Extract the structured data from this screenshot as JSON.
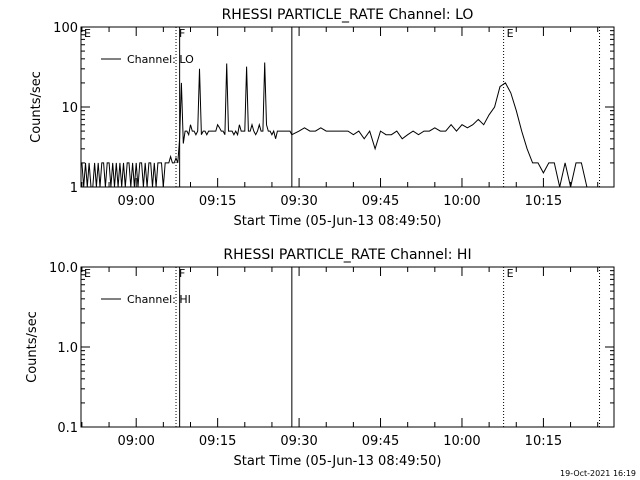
{
  "footer_timestamp": "19-Oct-2021 16:19",
  "chart_data": [
    {
      "type": "line",
      "title": "RHESSI PARTICLE_RATE Channel: LO",
      "xlabel": "Start Time (05-Jun-13 08:49:50)",
      "ylabel": "Counts/sec",
      "xlim": [
        "08:49:50",
        "10:28:00"
      ],
      "ylim": [
        1,
        100
      ],
      "yscale": "log",
      "x_ticks": [
        "09:00",
        "09:15",
        "09:30",
        "09:45",
        "10:00",
        "10:15"
      ],
      "y_ticks": [
        "1",
        "10",
        "100"
      ],
      "legend": "Channel: LO",
      "legend_position": "top-left",
      "markers": [
        {
          "label": "E",
          "time": "08:49:50",
          "style": "dotted"
        },
        {
          "label": "F",
          "time": "09:07:20",
          "style": "dotted"
        },
        {
          "label": "",
          "time": "09:08:00",
          "style": "solid"
        },
        {
          "label": "",
          "time": "09:28:40",
          "style": "solid"
        },
        {
          "label": "E",
          "time": "10:07:40",
          "style": "dotted"
        },
        {
          "label": "",
          "time": "10:25:20",
          "style": "dotted"
        }
      ],
      "series": [
        {
          "x": [
            "08:50:00",
            "08:50:20",
            "08:50:40",
            "08:51:00",
            "08:51:20",
            "08:51:40",
            "08:52:00",
            "08:52:20",
            "08:52:40",
            "08:53:00",
            "08:53:20",
            "08:53:40",
            "08:54:00",
            "08:54:20",
            "08:54:40",
            "08:55:00",
            "08:55:20",
            "08:55:40",
            "08:56:00",
            "08:56:20",
            "08:56:40",
            "08:57:00",
            "08:57:20",
            "08:57:40",
            "08:58:00",
            "08:58:20",
            "08:58:40",
            "08:59:00",
            "08:59:20",
            "08:59:40",
            "09:00:00",
            "09:00:20",
            "09:00:40",
            "09:01:00",
            "09:01:20",
            "09:01:40",
            "09:02:00",
            "09:02:20",
            "09:02:40",
            "09:03:00",
            "09:03:20",
            "09:03:40",
            "09:04:00",
            "09:04:20",
            "09:04:40",
            "09:05:00",
            "09:05:20",
            "09:05:40",
            "09:06:00",
            "09:06:20",
            "09:06:40",
            "09:07:00",
            "09:07:20",
            "09:07:40",
            "09:08:00",
            "09:08:20",
            "09:08:40",
            "09:09:00",
            "09:09:20",
            "09:09:40",
            "09:10:00",
            "09:10:20",
            "09:10:40",
            "09:11:00",
            "09:11:20",
            "09:11:40",
            "09:12:00",
            "09:12:20",
            "09:12:40",
            "09:13:00",
            "09:13:20",
            "09:13:40",
            "09:14:00",
            "09:14:20",
            "09:14:40",
            "09:15:00",
            "09:15:20",
            "09:15:40",
            "09:16:00",
            "09:16:20",
            "09:16:40",
            "09:17:00",
            "09:17:20",
            "09:17:40",
            "09:18:00",
            "09:18:20",
            "09:18:40",
            "09:19:00",
            "09:19:20",
            "09:19:40",
            "09:20:00",
            "09:20:20",
            "09:20:40",
            "09:21:00",
            "09:21:20",
            "09:21:40",
            "09:22:00",
            "09:22:20",
            "09:22:40",
            "09:23:00",
            "09:23:20",
            "09:23:40",
            "09:24:00",
            "09:24:20",
            "09:24:40",
            "09:25:00",
            "09:25:20",
            "09:25:40",
            "09:26:00",
            "09:26:20",
            "09:26:40",
            "09:27:00",
            "09:27:20",
            "09:27:40",
            "09:28:00",
            "09:28:20",
            "09:28:40",
            "09:30:00",
            "09:31:00",
            "09:32:00",
            "09:33:00",
            "09:34:00",
            "09:35:00",
            "09:36:00",
            "09:37:00",
            "09:38:00",
            "09:39:00",
            "09:40:00",
            "09:41:00",
            "09:42:00",
            "09:43:00",
            "09:44:00",
            "09:45:00",
            "09:46:00",
            "09:47:00",
            "09:48:00",
            "09:49:00",
            "09:50:00",
            "09:51:00",
            "09:52:00",
            "09:53:00",
            "09:54:00",
            "09:55:00",
            "09:56:00",
            "09:57:00",
            "09:58:00",
            "09:59:00",
            "10:00:00",
            "10:01:00",
            "10:02:00",
            "10:03:00",
            "10:04:00",
            "10:05:00",
            "10:06:00",
            "10:07:00",
            "10:08:00",
            "10:09:00",
            "10:10:00",
            "10:11:00",
            "10:12:00",
            "10:13:00",
            "10:14:00",
            "10:15:00",
            "10:16:00",
            "10:17:00",
            "10:18:00",
            "10:19:00",
            "10:20:00",
            "10:21:00",
            "10:22:00",
            "10:23:00",
            "10:24:00"
          ],
          "values": [
            2,
            1,
            2,
            1,
            2,
            1,
            1,
            2,
            1,
            2,
            1,
            2,
            2,
            1,
            2,
            2,
            1,
            2,
            1,
            2,
            1,
            2,
            1,
            2,
            1,
            2,
            2,
            1,
            2,
            1,
            2,
            1,
            2,
            2,
            1,
            2,
            1,
            2,
            2,
            1,
            2,
            1,
            2,
            2,
            2,
            1,
            2,
            2,
            2,
            2.4,
            2,
            2,
            2.3,
            2,
            4,
            20,
            3.5,
            5,
            5,
            4.5,
            6,
            5,
            5,
            4.5,
            5,
            30,
            4.5,
            5,
            5,
            4.5,
            5,
            5,
            5,
            5,
            5,
            6,
            5.5,
            5,
            5,
            4.5,
            35,
            5,
            5,
            5,
            4.5,
            5,
            4.5,
            6,
            5,
            5,
            5,
            32,
            5,
            5,
            6,
            5,
            4.5,
            5,
            6,
            5,
            5,
            36,
            6,
            5,
            5,
            4.5,
            5,
            4,
            5,
            5,
            5,
            5,
            5,
            5,
            5,
            5,
            4.5,
            5,
            5.5,
            5,
            5,
            5.5,
            5,
            5,
            5,
            5,
            5,
            4.5,
            5,
            4,
            5,
            3,
            5,
            4.5,
            4.5,
            5,
            4,
            4.5,
            5,
            4.5,
            5,
            5,
            5.5,
            5,
            5,
            6,
            5,
            6,
            5.5,
            6,
            7,
            6,
            8,
            10,
            18,
            20,
            15,
            9,
            5,
            3,
            2,
            2,
            1.5,
            2,
            2,
            1,
            2,
            1,
            2,
            2,
            1,
            1
          ]
        }
      ]
    },
    {
      "type": "line",
      "title": "RHESSI PARTICLE_RATE Channel: HI",
      "xlabel": "Start Time (05-Jun-13 08:49:50)",
      "ylabel": "Counts/sec",
      "xlim": [
        "08:49:50",
        "10:28:00"
      ],
      "ylim": [
        0.1,
        10
      ],
      "yscale": "log",
      "x_ticks": [
        "09:00",
        "09:15",
        "09:30",
        "09:45",
        "10:00",
        "10:15"
      ],
      "y_ticks": [
        "0.1",
        "1.0",
        "10.0"
      ],
      "legend": "Channel: HI",
      "legend_position": "top-left",
      "markers": [
        {
          "label": "E",
          "time": "08:49:50",
          "style": "dotted"
        },
        {
          "label": "F",
          "time": "09:07:20",
          "style": "dotted"
        },
        {
          "label": "",
          "time": "09:08:00",
          "style": "solid"
        },
        {
          "label": "",
          "time": "09:28:40",
          "style": "solid"
        },
        {
          "label": "E",
          "time": "10:07:40",
          "style": "dotted"
        },
        {
          "label": "",
          "time": "10:25:20",
          "style": "dotted"
        }
      ],
      "series": [
        {
          "x": [],
          "values": []
        }
      ]
    }
  ]
}
